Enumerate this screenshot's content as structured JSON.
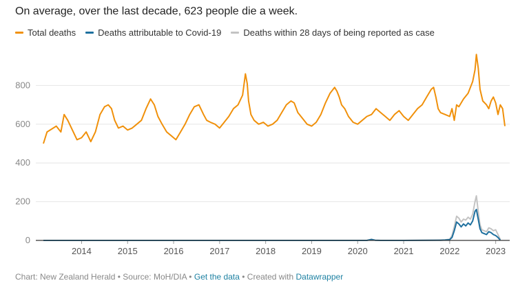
{
  "title": "On average, over the last decade, 623 people die a week.",
  "legend": [
    {
      "label": "Total deaths",
      "color": "#f0900a"
    },
    {
      "label": "Deaths attributable to Covid-19",
      "color": "#1d6f9e"
    },
    {
      "label": "Deaths within 28 days of being reported as case",
      "color": "#c3c3c3"
    }
  ],
  "footer": {
    "prefix": "Chart: New Zealand Herald • Source: MoH/DIA •",
    "get_data": "Get the data",
    "middle": "• Created with",
    "datawrapper": "Datawrapper"
  },
  "chart_data": {
    "type": "line",
    "title": "On average, over the last decade, 623 people die a week.",
    "xlabel": "",
    "ylabel": "",
    "xlim": [
      2013.17,
      2023.2
    ],
    "ylim": [
      0,
      1000
    ],
    "yticks": [
      0,
      200,
      400,
      600,
      800
    ],
    "xticks": [
      2014,
      2015,
      2016,
      2017,
      2018,
      2019,
      2020,
      2021,
      2022,
      2023
    ],
    "grid": true,
    "legend_position": "top-left",
    "series": [
      {
        "name": "Total deaths",
        "color": "#f0900a",
        "x": [
          2013.17,
          2013.25,
          2013.35,
          2013.45,
          2013.55,
          2013.62,
          2013.7,
          2013.8,
          2013.9,
          2014.0,
          2014.1,
          2014.2,
          2014.3,
          2014.4,
          2014.5,
          2014.58,
          2014.65,
          2014.72,
          2014.8,
          2014.9,
          2015.0,
          2015.1,
          2015.2,
          2015.3,
          2015.4,
          2015.5,
          2015.58,
          2015.66,
          2015.75,
          2015.85,
          2015.95,
          2016.05,
          2016.15,
          2016.25,
          2016.35,
          2016.45,
          2016.55,
          2016.65,
          2016.72,
          2016.8,
          2016.9,
          2017.0,
          2017.1,
          2017.2,
          2017.3,
          2017.4,
          2017.5,
          2017.56,
          2017.6,
          2017.63,
          2017.68,
          2017.75,
          2017.85,
          2017.95,
          2018.05,
          2018.15,
          2018.25,
          2018.35,
          2018.45,
          2018.55,
          2018.62,
          2018.7,
          2018.8,
          2018.9,
          2019.0,
          2019.1,
          2019.2,
          2019.3,
          2019.4,
          2019.5,
          2019.55,
          2019.6,
          2019.65,
          2019.72,
          2019.8,
          2019.9,
          2020.0,
          2020.1,
          2020.2,
          2020.3,
          2020.4,
          2020.5,
          2020.6,
          2020.7,
          2020.8,
          2020.9,
          2021.0,
          2021.1,
          2021.2,
          2021.3,
          2021.4,
          2021.5,
          2021.6,
          2021.65,
          2021.7,
          2021.75,
          2021.8,
          2021.9,
          2022.0,
          2022.05,
          2022.1,
          2022.15,
          2022.2,
          2022.3,
          2022.4,
          2022.5,
          2022.55,
          2022.58,
          2022.62,
          2022.66,
          2022.72,
          2022.8,
          2022.85,
          2022.9,
          2022.95,
          2023.0,
          2023.05,
          2023.1,
          2023.15,
          2023.2
        ],
        "values": [
          500,
          560,
          575,
          590,
          560,
          650,
          620,
          570,
          520,
          530,
          560,
          510,
          560,
          650,
          690,
          700,
          680,
          620,
          580,
          590,
          570,
          580,
          600,
          620,
          680,
          730,
          700,
          640,
          600,
          560,
          540,
          520,
          560,
          600,
          650,
          690,
          700,
          650,
          620,
          610,
          600,
          580,
          610,
          640,
          680,
          700,
          750,
          860,
          810,
          720,
          650,
          620,
          600,
          610,
          590,
          600,
          620,
          660,
          700,
          720,
          710,
          660,
          630,
          600,
          590,
          610,
          650,
          710,
          760,
          790,
          770,
          740,
          700,
          680,
          640,
          610,
          600,
          620,
          640,
          650,
          680,
          660,
          640,
          620,
          650,
          670,
          640,
          620,
          650,
          680,
          700,
          740,
          780,
          790,
          740,
          680,
          660,
          650,
          640,
          680,
          620,
          700,
          690,
          730,
          760,
          820,
          880,
          960,
          890,
          780,
          720,
          700,
          680,
          720,
          740,
          710,
          650,
          700,
          680,
          590
        ]
      },
      {
        "name": "Deaths attributable to Covid-19",
        "color": "#1d6f9e",
        "x": [
          2013.17,
          2020.2,
          2020.3,
          2020.38,
          2020.5,
          2021.0,
          2021.8,
          2021.9,
          2022.0,
          2022.05,
          2022.1,
          2022.15,
          2022.2,
          2022.25,
          2022.3,
          2022.35,
          2022.4,
          2022.45,
          2022.5,
          2022.55,
          2022.58,
          2022.62,
          2022.66,
          2022.7,
          2022.75,
          2022.8,
          2022.85,
          2022.9,
          2022.95,
          2023.0,
          2023.05,
          2023.1
        ],
        "values": [
          0,
          0,
          5,
          1,
          0,
          0,
          1,
          2,
          4,
          15,
          50,
          95,
          85,
          70,
          85,
          75,
          90,
          80,
          100,
          150,
          160,
          110,
          60,
          40,
          35,
          30,
          45,
          40,
          30,
          25,
          15,
          2
        ]
      },
      {
        "name": "Deaths within 28 days of being reported as case",
        "color": "#c3c3c3",
        "x": [
          2013.17,
          2020.2,
          2020.3,
          2020.38,
          2020.5,
          2021.0,
          2021.8,
          2021.9,
          2022.0,
          2022.05,
          2022.1,
          2022.15,
          2022.2,
          2022.25,
          2022.3,
          2022.35,
          2022.4,
          2022.45,
          2022.5,
          2022.55,
          2022.58,
          2022.62,
          2022.66,
          2022.7,
          2022.75,
          2022.8,
          2022.85,
          2022.9,
          2022.95,
          2023.0,
          2023.05,
          2023.1
        ],
        "values": [
          0,
          0,
          6,
          1,
          0,
          0,
          2,
          3,
          6,
          25,
          70,
          125,
          115,
          95,
          110,
          105,
          120,
          110,
          135,
          200,
          230,
          150,
          80,
          55,
          50,
          45,
          65,
          60,
          50,
          55,
          30,
          5
        ]
      }
    ]
  }
}
